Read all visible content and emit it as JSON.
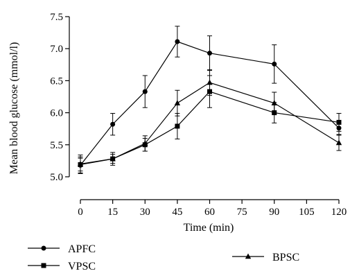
{
  "chart_data": {
    "type": "line",
    "title": "",
    "xlabel": "Time (min)",
    "ylabel": "Mean blood glucose (mmol/l)",
    "xlim": [
      0,
      120
    ],
    "ylim": [
      5.0,
      7.5
    ],
    "x_ticks": [
      0,
      15,
      30,
      45,
      60,
      75,
      90,
      105,
      120
    ],
    "y_ticks": [
      5.0,
      5.5,
      6.0,
      6.5,
      7.0,
      7.5
    ],
    "y_tick_labels": [
      "5.0",
      "5.5",
      "6.0",
      "6.5",
      "7.0",
      "7.5"
    ],
    "grid": false,
    "legend_position": "bottom",
    "line_color": "#000000",
    "series": [
      {
        "name": "APFC",
        "marker": "circle",
        "x": [
          0,
          15,
          30,
          45,
          60,
          90,
          120
        ],
        "values": [
          5.18,
          5.82,
          6.33,
          7.11,
          6.93,
          6.76,
          5.76
        ],
        "error": [
          0.13,
          0.17,
          0.25,
          0.24,
          0.27,
          0.3,
          0.1
        ]
      },
      {
        "name": "VPSC",
        "marker": "square",
        "x": [
          0,
          15,
          30,
          45,
          60,
          90,
          120
        ],
        "values": [
          5.19,
          5.28,
          5.5,
          5.79,
          6.33,
          6.0,
          5.85
        ],
        "error": [
          0.1,
          0.07,
          0.1,
          0.2,
          0.25,
          0.16,
          0.14
        ]
      },
      {
        "name": "BPSC",
        "marker": "triangle",
        "x": [
          0,
          15,
          30,
          45,
          60,
          90,
          120
        ],
        "values": [
          5.2,
          5.28,
          5.52,
          6.15,
          6.47,
          6.15,
          5.53
        ],
        "error": [
          0.14,
          0.1,
          0.12,
          0.2,
          0.2,
          0.17,
          0.12
        ]
      }
    ]
  }
}
